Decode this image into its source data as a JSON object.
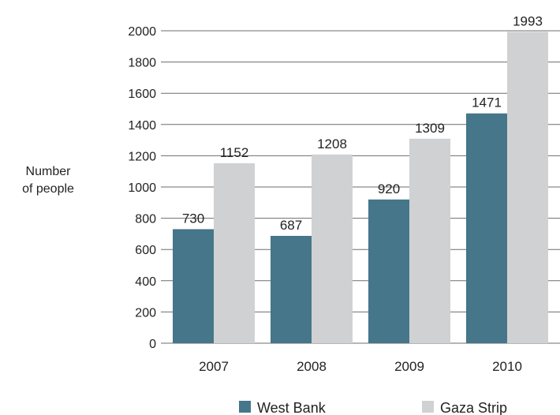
{
  "chart_data": {
    "type": "bar",
    "categories": [
      "2007",
      "2008",
      "2009",
      "2010"
    ],
    "series": [
      {
        "name": "West Bank",
        "color": "#45768a",
        "values": [
          730,
          687,
          920,
          1471
        ]
      },
      {
        "name": "Gaza Strip",
        "color": "#d0d1d2",
        "values": [
          1152,
          1208,
          1309,
          1993
        ]
      }
    ],
    "ylabel_lines": [
      "Number",
      "of people"
    ],
    "yticks": [
      0,
      200,
      400,
      600,
      800,
      1000,
      1200,
      1400,
      1600,
      1800,
      2000
    ],
    "ylim": [
      0,
      2000
    ],
    "grid": true,
    "legend": "bottom"
  }
}
